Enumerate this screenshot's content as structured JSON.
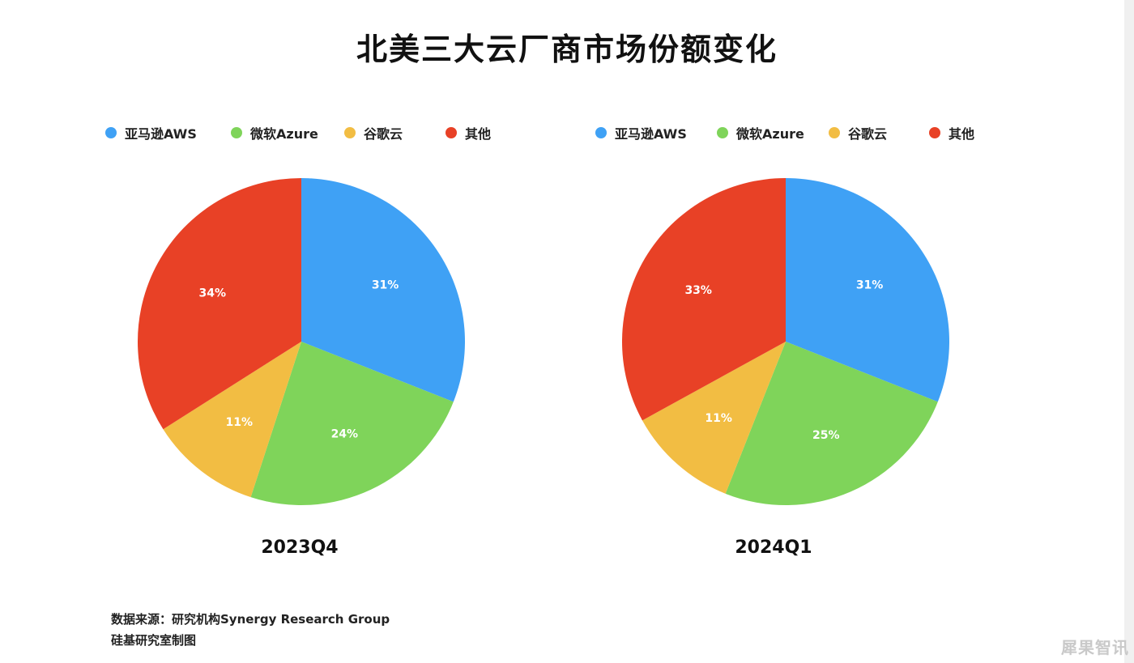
{
  "title": "北美三大云厂商市场份额变化",
  "legend": [
    {
      "label": "亚马逊AWS",
      "color": "#3fa1f5"
    },
    {
      "label": "微软Azure",
      "color": "#7fd45a"
    },
    {
      "label": "谷歌云",
      "color": "#f2bd43"
    },
    {
      "label": "其他",
      "color": "#e84126"
    }
  ],
  "source_line1": "数据来源：研究机构Synergy  Research  Group",
  "source_line2": "硅基研究室制图",
  "watermark": "犀果智讯",
  "chart_data": [
    {
      "type": "pie",
      "title": "2023Q4",
      "categories": [
        "亚马逊AWS",
        "微软Azure",
        "谷歌云",
        "其他"
      ],
      "values": [
        31,
        24,
        11,
        34
      ],
      "labels": [
        "31%",
        "24%",
        "11%",
        "34%"
      ],
      "colors": [
        "#3fa1f5",
        "#7fd45a",
        "#f2bd43",
        "#e84126"
      ]
    },
    {
      "type": "pie",
      "title": "2024Q1",
      "categories": [
        "亚马逊AWS",
        "微软Azure",
        "谷歌云",
        "其他"
      ],
      "values": [
        31,
        25,
        11,
        33
      ],
      "labels": [
        "31%",
        "25%",
        "11%",
        "33%"
      ],
      "colors": [
        "#3fa1f5",
        "#7fd45a",
        "#f2bd43",
        "#e84126"
      ]
    }
  ]
}
